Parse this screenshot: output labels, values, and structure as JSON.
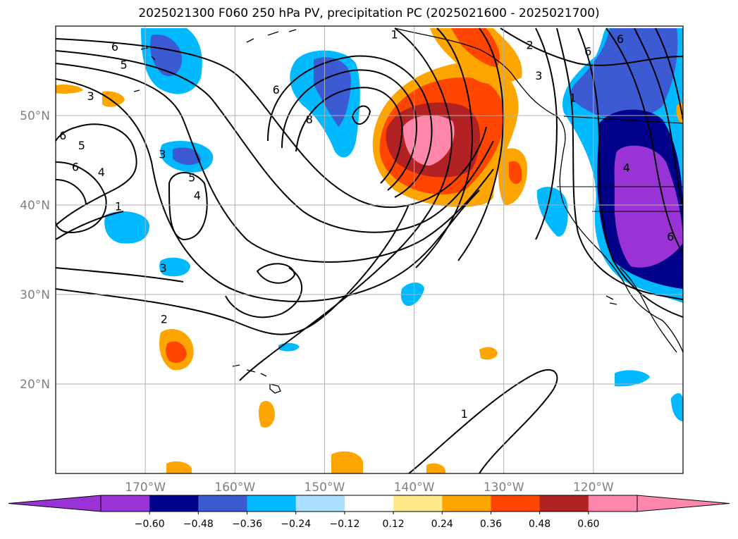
{
  "title": "2025021300 F060 250 hPa PV, precipitation PC (2025021600 - 2025021700)",
  "map": {
    "lon_range": [
      -180,
      -110
    ],
    "lat_range": [
      10,
      60
    ],
    "lon_ticks": [
      {
        "value": -170,
        "label": "170°W"
      },
      {
        "value": -160,
        "label": "160°W"
      },
      {
        "value": -150,
        "label": "150°W"
      },
      {
        "value": -140,
        "label": "140°W"
      },
      {
        "value": -130,
        "label": "130°W"
      },
      {
        "value": -120,
        "label": "120°W"
      }
    ],
    "lat_ticks": [
      {
        "value": 20,
        "label": "20°N"
      },
      {
        "value": 30,
        "label": "30°N"
      },
      {
        "value": 40,
        "label": "40°N"
      },
      {
        "value": 50,
        "label": "50°N"
      }
    ],
    "grid": true,
    "contour_labels": [
      {
        "text": "1",
        "lon": -142.2,
        "lat": 59.1
      },
      {
        "text": "2",
        "lon": -127.1,
        "lat": 57.9
      },
      {
        "text": "3",
        "lon": -126.1,
        "lat": 54.5
      },
      {
        "text": "6",
        "lon": -179.2,
        "lat": 47.8
      },
      {
        "text": "6",
        "lon": -173.4,
        "lat": 57.7
      },
      {
        "text": "5",
        "lon": -172.4,
        "lat": 55.7
      },
      {
        "text": "3",
        "lon": -176.1,
        "lat": 52.2
      },
      {
        "text": "5",
        "lon": -177.1,
        "lat": 46.7
      },
      {
        "text": "6",
        "lon": -177.8,
        "lat": 44.3
      },
      {
        "text": "4",
        "lon": -174.9,
        "lat": 43.7
      },
      {
        "text": "3",
        "lon": -168.1,
        "lat": 45.7
      },
      {
        "text": "1",
        "lon": -173.0,
        "lat": 39.9
      },
      {
        "text": "6",
        "lon": -155.4,
        "lat": 52.9
      },
      {
        "text": "8",
        "lon": -151.7,
        "lat": 49.6
      },
      {
        "text": "5",
        "lon": -164.8,
        "lat": 43.1
      },
      {
        "text": "4",
        "lon": -164.2,
        "lat": 41.1
      },
      {
        "text": "3",
        "lon": -168.0,
        "lat": 33.0
      },
      {
        "text": "2",
        "lon": -167.9,
        "lat": 27.3
      },
      {
        "text": "1",
        "lon": -134.4,
        "lat": 16.7
      },
      {
        "text": "6",
        "lon": -120.6,
        "lat": 57.2
      },
      {
        "text": "6",
        "lon": -117.0,
        "lat": 58.6
      },
      {
        "text": "1",
        "lon": -122.3,
        "lat": 52.0
      },
      {
        "text": "4",
        "lon": -116.3,
        "lat": 44.2
      },
      {
        "text": "6",
        "lon": -111.4,
        "lat": 36.5
      }
    ]
  },
  "colorbar": {
    "colors": [
      "#9a33d6",
      "#00008b",
      "#3c5ad2",
      "#00b9ff",
      "#aadfff",
      "#ffffff",
      "#ffe88a",
      "#ffa500",
      "#ff4500",
      "#b22222",
      "#ff88aa"
    ],
    "under_color": "#9a33d6",
    "over_color": "#ff88aa",
    "levels": [
      -0.6,
      -0.48,
      -0.36,
      -0.24,
      -0.12,
      0.12,
      0.24,
      0.36,
      0.48,
      0.6
    ],
    "tick_labels": [
      "−0.60",
      "−0.48",
      "−0.36",
      "−0.24",
      "−0.12",
      "0.12",
      "0.24",
      "0.36",
      "0.48",
      "0.60"
    ],
    "extend": "both"
  }
}
